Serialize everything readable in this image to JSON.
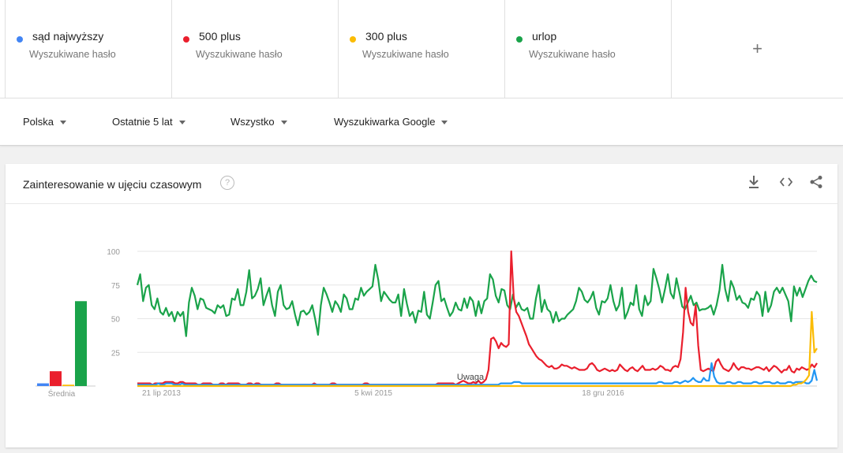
{
  "terms": [
    {
      "name": "sąd najwyższy",
      "sub": "Wyszukiwane hasło",
      "color": "#4285f4"
    },
    {
      "name": "500 plus",
      "sub": "Wyszukiwane hasło",
      "color": "#ea1f2d"
    },
    {
      "name": "300 plus",
      "sub": "Wyszukiwane hasło",
      "color": "#fbbc05"
    },
    {
      "name": "urlop",
      "sub": "Wyszukiwane hasło",
      "color": "#1aa34a"
    }
  ],
  "add_term": "+",
  "filters": {
    "region": "Polska",
    "period": "Ostatnie 5 lat",
    "category": "Wszystko",
    "source": "Wyszukiwarka Google"
  },
  "card": {
    "title": "Zainteresowanie w ujęciu czasowym",
    "help": "?"
  },
  "icons": {
    "download": "download-icon",
    "embed": "embed-icon",
    "share": "share-icon"
  },
  "chart_data": {
    "type": "line",
    "y_ticks": [
      "100",
      "75",
      "50",
      "25"
    ],
    "ylim": [
      0,
      100
    ],
    "x_ticks": [
      "21 lip 2013",
      "5 kwi 2015",
      "18 gru 2016"
    ],
    "annotation": "Uwaga",
    "average_label": "Średnia",
    "averages": [
      {
        "name": "sąd najwyższy",
        "value": 2
      },
      {
        "name": "500 plus",
        "value": 11
      },
      {
        "name": "300 plus",
        "value": 1
      },
      {
        "name": "urlop",
        "value": 63
      }
    ],
    "series": [
      {
        "name": "urlop",
        "color": "#1aa34a",
        "values": [
          75,
          83,
          63,
          73,
          75,
          60,
          57,
          65,
          55,
          53,
          58,
          52,
          55,
          48,
          55,
          52,
          55,
          37,
          62,
          73,
          67,
          57,
          65,
          64,
          58,
          57,
          56,
          54,
          60,
          58,
          60,
          52,
          53,
          65,
          64,
          72,
          60,
          60,
          70,
          86,
          65,
          67,
          72,
          80,
          60,
          67,
          73,
          60,
          52,
          70,
          75,
          60,
          57,
          58,
          63,
          53,
          45,
          55,
          56,
          53,
          55,
          60,
          50,
          38,
          60,
          73,
          68,
          62,
          55,
          63,
          60,
          55,
          68,
          65,
          57,
          57,
          65,
          64,
          73,
          67,
          70,
          72,
          74,
          90,
          79,
          63,
          70,
          67,
          64,
          62,
          62,
          68,
          52,
          72,
          61,
          52,
          55,
          47,
          56,
          55,
          70,
          53,
          50,
          62,
          75,
          78,
          63,
          65,
          58,
          52,
          55,
          62,
          57,
          56,
          65,
          58,
          66,
          63,
          52,
          63,
          54,
          63,
          65,
          83,
          79,
          67,
          62,
          72,
          71,
          60,
          57,
          68,
          58,
          62,
          57,
          56,
          58,
          50,
          50,
          65,
          75,
          55,
          64,
          57,
          55,
          47,
          55,
          48,
          50,
          50,
          53,
          55,
          57,
          63,
          73,
          70,
          64,
          62,
          65,
          70,
          58,
          53,
          63,
          62,
          65,
          75,
          63,
          56,
          60,
          73,
          50,
          55,
          62,
          60,
          75,
          57,
          52,
          67,
          60,
          63,
          87,
          80,
          72,
          62,
          72,
          83,
          69,
          65,
          80,
          70,
          59,
          57,
          62,
          67,
          60,
          62,
          56,
          57,
          57,
          58,
          60,
          53,
          60,
          71,
          90,
          72,
          63,
          78,
          73,
          64,
          67,
          62,
          61,
          58,
          65,
          64,
          70,
          67,
          52,
          70,
          55,
          60,
          70,
          73,
          69,
          73,
          68,
          63,
          48,
          74,
          67,
          73,
          66,
          72,
          78,
          82,
          78,
          77
        ]
      },
      {
        "name": "500 plus",
        "color": "#ea1f2d",
        "values": [
          2,
          2,
          2,
          2,
          2,
          2,
          1,
          2,
          2,
          2,
          2,
          3,
          3,
          3,
          3,
          2,
          2,
          3,
          3,
          2,
          2,
          2,
          2,
          2,
          1,
          1,
          2,
          2,
          2,
          2,
          1,
          1,
          1,
          2,
          2,
          1,
          2,
          2,
          2,
          2,
          2,
          1,
          1,
          1,
          2,
          2,
          1,
          2,
          2,
          1,
          1,
          1,
          1,
          1,
          1,
          2,
          2,
          1,
          1,
          1,
          1,
          1,
          1,
          1,
          1,
          1,
          1,
          1,
          1,
          1,
          2,
          1,
          1,
          1,
          1,
          1,
          1,
          2,
          2,
          1,
          1,
          1,
          1,
          1,
          1,
          1,
          1,
          1,
          1,
          1,
          2,
          2,
          1,
          1,
          1,
          1,
          1,
          1,
          1,
          1,
          1,
          1,
          1,
          1,
          1,
          1,
          1,
          1,
          1,
          1,
          1,
          1,
          1,
          1,
          1,
          1,
          1,
          1,
          1,
          2,
          2,
          2,
          2,
          2,
          2,
          2,
          1,
          2,
          3,
          4,
          3,
          2,
          2,
          3,
          2,
          4,
          2,
          3,
          5,
          12,
          35,
          36,
          33,
          28,
          32,
          30,
          29,
          31,
          100,
          65,
          55,
          52,
          47,
          42,
          37,
          31,
          28,
          25,
          22,
          20,
          19,
          17,
          15,
          14,
          15,
          13,
          13,
          14,
          16,
          15,
          15,
          14,
          13,
          14,
          13,
          12,
          12,
          12,
          13,
          16,
          17,
          15,
          12,
          11,
          12,
          13,
          12,
          11,
          12,
          11,
          12,
          16,
          14,
          12,
          11,
          13,
          14,
          12,
          11,
          13,
          15,
          12,
          12,
          12,
          13,
          12,
          13,
          15,
          14,
          12,
          12,
          11,
          14,
          15,
          14,
          20,
          40,
          73,
          55,
          47,
          45,
          60,
          30,
          12,
          11,
          12,
          13,
          12,
          11,
          18,
          20,
          16,
          13,
          12,
          11,
          13,
          17,
          14,
          12,
          14,
          14,
          13,
          13,
          12,
          13,
          14,
          14,
          13,
          12,
          14,
          11,
          13,
          15,
          14,
          12,
          10,
          12,
          12,
          15,
          11,
          10,
          13,
          12,
          14,
          13,
          12,
          13,
          16,
          14,
          17
        ]
      },
      {
        "name": "sąd najwyższy",
        "color": "#2196f3",
        "values": [
          1,
          1,
          1,
          1,
          1,
          1,
          1,
          1,
          2,
          1,
          1,
          2,
          2,
          2,
          1,
          1,
          1,
          2,
          1,
          1,
          1,
          1,
          1,
          1,
          1,
          1,
          1,
          1,
          1,
          1,
          1,
          1,
          1,
          1,
          1,
          1,
          1,
          1,
          1,
          1,
          1,
          1,
          1,
          1,
          1,
          1,
          1,
          1,
          1,
          1,
          1,
          1,
          1,
          1,
          1,
          1,
          1,
          1,
          1,
          1,
          1,
          1,
          1,
          1,
          1,
          1,
          1,
          1,
          1,
          1,
          1,
          1,
          1,
          1,
          1,
          1,
          1,
          1,
          1,
          1,
          1,
          1,
          1,
          1,
          1,
          1,
          1,
          1,
          1,
          1,
          1,
          1,
          1,
          1,
          1,
          1,
          1,
          1,
          1,
          1,
          1,
          1,
          1,
          1,
          1,
          1,
          1,
          1,
          1,
          1,
          1,
          1,
          1,
          1,
          1,
          1,
          1,
          1,
          1,
          1,
          1,
          1,
          1,
          1,
          1,
          1,
          1,
          1,
          1,
          1,
          1,
          1,
          1,
          1,
          1,
          1,
          1,
          1,
          2,
          2,
          2,
          2,
          2,
          3,
          3,
          3,
          2,
          2,
          2,
          2,
          2,
          2,
          2,
          2,
          2,
          2,
          2,
          2,
          2,
          2,
          2,
          2,
          2,
          2,
          2,
          2,
          2,
          2,
          2,
          2,
          2,
          2,
          2,
          2,
          2,
          2,
          2,
          2,
          2,
          2,
          2,
          2,
          2,
          2,
          2,
          2,
          2,
          2,
          2,
          2,
          2,
          2,
          2,
          2,
          2,
          2,
          2,
          2,
          3,
          3,
          2,
          2,
          2,
          2,
          3,
          3,
          2,
          3,
          4,
          3,
          4,
          6,
          4,
          3,
          3,
          6,
          4,
          4,
          17,
          7,
          3,
          2,
          2,
          2,
          3,
          3,
          2,
          2,
          3,
          3,
          2,
          2,
          2,
          2,
          3,
          3,
          2,
          2,
          3,
          3,
          3,
          2,
          2,
          3,
          2,
          2,
          2,
          3,
          3,
          2,
          3,
          3,
          3,
          3,
          2,
          2,
          4,
          12,
          4
        ]
      },
      {
        "name": "300 plus",
        "color": "#fbbc05",
        "values": [
          0,
          0,
          0,
          0,
          0,
          0,
          0,
          0,
          0,
          0,
          0,
          0,
          0,
          0,
          0,
          0,
          0,
          0,
          0,
          0,
          0,
          0,
          0,
          0,
          0,
          0,
          0,
          0,
          0,
          0,
          0,
          0,
          0,
          0,
          0,
          0,
          0,
          0,
          0,
          0,
          0,
          0,
          0,
          0,
          0,
          0,
          0,
          0,
          0,
          0,
          0,
          0,
          0,
          0,
          0,
          0,
          0,
          0,
          0,
          0,
          0,
          0,
          0,
          0,
          0,
          0,
          0,
          0,
          0,
          0,
          0,
          0,
          0,
          0,
          0,
          0,
          0,
          0,
          0,
          0,
          0,
          0,
          0,
          0,
          0,
          0,
          0,
          0,
          0,
          0,
          0,
          0,
          0,
          0,
          0,
          0,
          0,
          0,
          0,
          0,
          0,
          0,
          0,
          0,
          0,
          0,
          0,
          0,
          0,
          0,
          0,
          0,
          0,
          0,
          0,
          0,
          0,
          0,
          0,
          0,
          0,
          0,
          0,
          0,
          0,
          0,
          0,
          0,
          0,
          0,
          0,
          0,
          0,
          0,
          0,
          0,
          0,
          0,
          0,
          0,
          0,
          0,
          0,
          0,
          0,
          0,
          0,
          0,
          0,
          0,
          0,
          0,
          0,
          0,
          0,
          0,
          0,
          0,
          0,
          0,
          0,
          0,
          0,
          0,
          0,
          0,
          0,
          0,
          0,
          0,
          0,
          0,
          0,
          0,
          0,
          0,
          0,
          0,
          0,
          0,
          0,
          0,
          0,
          0,
          0,
          0,
          0,
          0,
          0,
          0,
          0,
          0,
          0,
          0,
          0,
          0,
          0,
          0,
          0,
          0,
          0,
          0,
          0,
          0,
          0,
          0,
          0,
          0,
          0,
          0,
          0,
          0,
          0,
          0,
          0,
          0,
          0,
          0,
          0,
          0,
          0,
          0,
          0,
          0,
          0,
          0,
          0,
          0,
          0,
          0,
          0,
          0,
          0,
          0,
          0,
          0,
          0,
          0,
          0,
          0,
          0,
          0,
          0,
          0,
          0,
          0,
          0,
          0,
          0,
          0,
          1,
          1,
          2,
          2,
          3,
          5,
          8,
          55,
          25,
          28
        ]
      }
    ]
  }
}
